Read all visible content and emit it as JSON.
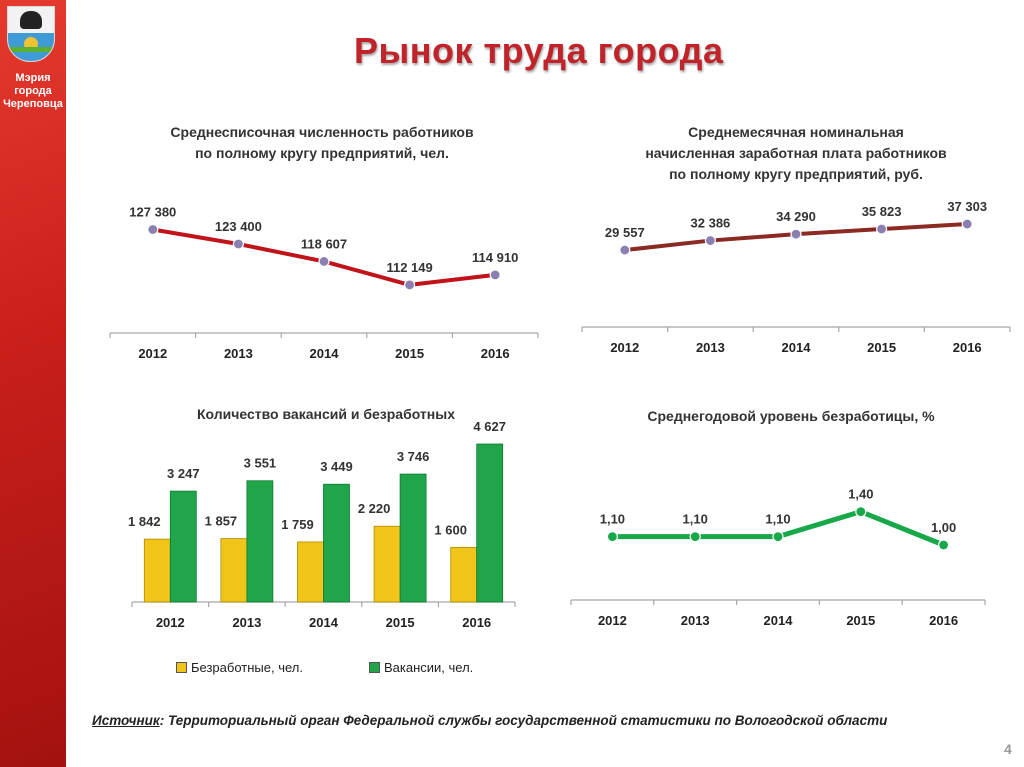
{
  "sidebar": {
    "logo_icon": "city-crest-icon",
    "org_name": [
      "Мэрия",
      "города",
      "Череповца"
    ]
  },
  "page_title": "Рынок труда города",
  "colors": {
    "accent_red": "#c0242a",
    "employees_line": "#c0141a",
    "salary_line": "#8b2a22",
    "unemployment_line": "#18a84a",
    "unemployed_bar": "#f0c419",
    "vacancies_bar": "#20a54a",
    "marker": "#8a7fb0"
  },
  "chart_data": [
    {
      "id": "employees",
      "type": "line",
      "title": [
        "Среднесписочная численность работников",
        "по полному кругу предприятий, чел."
      ],
      "categories": [
        "2012",
        "2013",
        "2014",
        "2015",
        "2016"
      ],
      "values": [
        127380,
        123400,
        118607,
        112149,
        114910
      ],
      "labels": [
        "127 380",
        "123 400",
        "118 607",
        "112 149",
        "114 910"
      ]
    },
    {
      "id": "salary",
      "type": "line",
      "title": [
        "Среднемесячная номинальная",
        "начисленная заработная плата работников",
        "по полному кругу предприятий, руб."
      ],
      "categories": [
        "2012",
        "2013",
        "2014",
        "2015",
        "2016"
      ],
      "values": [
        29557,
        32386,
        34290,
        35823,
        37303
      ],
      "labels": [
        "29 557",
        "32 386",
        "34 290",
        "35 823",
        "37 303"
      ]
    },
    {
      "id": "vacancies",
      "type": "bar",
      "title": [
        "Количество вакансий и безработных"
      ],
      "categories": [
        "2012",
        "2013",
        "2014",
        "2015",
        "2016"
      ],
      "series": [
        {
          "name": "Безработные, чел.",
          "values": [
            1842,
            1857,
            1759,
            2220,
            1600
          ],
          "labels": [
            "1 842",
            "1 857",
            "1 759",
            "2 220",
            "1 600"
          ]
        },
        {
          "name": "Вакансии, чел.",
          "values": [
            3247,
            3551,
            3449,
            3746,
            4627
          ],
          "labels": [
            "3 247",
            "3 551",
            "3 449",
            "3 746",
            "4 627"
          ]
        }
      ],
      "legend": "bottom"
    },
    {
      "id": "unemployment",
      "type": "line",
      "title": [
        "Среднегодовой уровень безработицы, %"
      ],
      "categories": [
        "2012",
        "2013",
        "2014",
        "2015",
        "2016"
      ],
      "values": [
        1.1,
        1.1,
        1.1,
        1.4,
        1.0
      ],
      "labels": [
        "1,10",
        "1,10",
        "1,10",
        "1,40",
        "1,00"
      ]
    }
  ],
  "source": {
    "label": "Источник",
    "text": ": Территориальный орган Федеральной службы государственной статистики по Вологодской области"
  },
  "page_number": "4"
}
